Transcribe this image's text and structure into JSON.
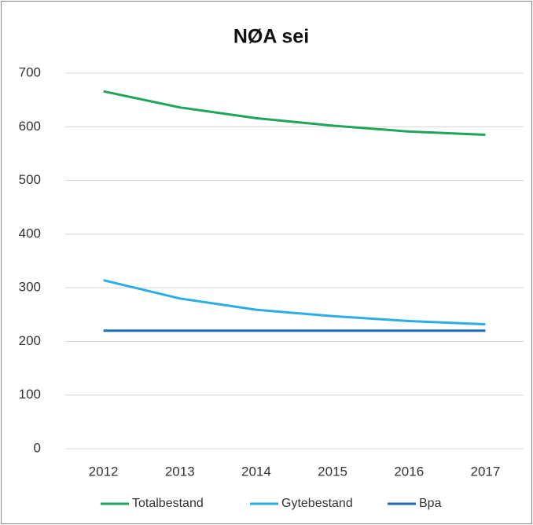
{
  "chart_data": {
    "type": "line",
    "title": "NØA sei",
    "categories": [
      "2012",
      "2013",
      "2014",
      "2015",
      "2016",
      "2017"
    ],
    "series": [
      {
        "name": "Totalbestand",
        "color": "#1fa55a",
        "values": [
          666,
          636,
          616,
          602,
          591,
          585
        ]
      },
      {
        "name": "Gytebestand",
        "color": "#2aaee4",
        "values": [
          314,
          280,
          259,
          247,
          238,
          232
        ]
      },
      {
        "name": "Bpa",
        "color": "#1f6db5",
        "values": [
          220,
          220,
          220,
          220,
          220,
          220
        ]
      }
    ],
    "ylim": [
      0,
      700
    ],
    "yticks": [
      0,
      100,
      200,
      300,
      400,
      500,
      600,
      700
    ],
    "grid": true,
    "legend": "bottom"
  }
}
